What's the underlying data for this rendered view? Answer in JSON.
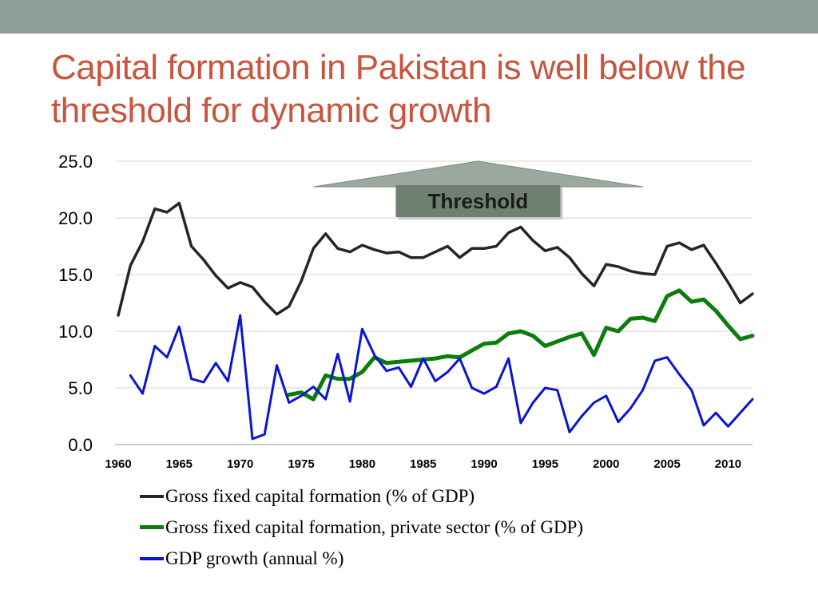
{
  "slide": {
    "title": "Capital formation in Pakistan is well below the threshold for dynamic growth",
    "accent_color": "#c8553d",
    "bar_color": "#8f9e96"
  },
  "annotation": {
    "label": "Threshold",
    "value": 25.0,
    "x_start": 1976,
    "x_end": 2003,
    "box_color": "#6f8070"
  },
  "chart_data": {
    "type": "line",
    "title": "",
    "xlabel": "",
    "ylabel": "",
    "xlim": [
      1960,
      2012
    ],
    "ylim": [
      0,
      25
    ],
    "yticks": [
      "25.0",
      "20.0",
      "15.0",
      "10.0",
      "5.0",
      "0.0"
    ],
    "xticks": [
      "1960",
      "1965",
      "1970",
      "1975",
      "1980",
      "1985",
      "1990",
      "1995",
      "2000",
      "2005",
      "2010"
    ],
    "grid": true,
    "legend_position": "bottom",
    "series": [
      {
        "name": "Gross fixed capital formation (% of GDP)",
        "color": "#22252e",
        "width": 3.5,
        "start_year": 1960,
        "values": [
          11.4,
          15.8,
          17.9,
          20.8,
          20.5,
          21.3,
          17.5,
          16.3,
          14.9,
          13.8,
          14.3,
          13.9,
          12.6,
          11.5,
          12.2,
          14.4,
          17.3,
          18.6,
          17.3,
          17.0,
          17.6,
          17.2,
          16.9,
          17.0,
          16.5,
          16.5,
          17.0,
          17.5,
          16.5,
          17.3,
          17.3,
          17.5,
          18.7,
          19.2,
          18.0,
          17.1,
          17.4,
          16.5,
          15.1,
          14.0,
          15.9,
          15.7,
          15.3,
          15.1,
          15.0,
          17.5,
          17.8,
          17.2,
          17.6,
          16.0,
          14.3,
          12.5,
          13.3
        ]
      },
      {
        "name": "Gross fixed capital formation, private sector (% of GDP)",
        "color": "#0a7d0a",
        "width": 5,
        "start_year": 1974,
        "values": [
          4.4,
          4.6,
          4.0,
          6.1,
          5.8,
          5.8,
          6.4,
          7.7,
          7.2,
          7.3,
          7.4,
          7.5,
          7.6,
          7.8,
          7.7,
          8.3,
          8.9,
          9.0,
          9.8,
          10.0,
          9.6,
          8.7,
          9.1,
          9.5,
          9.8,
          7.9,
          10.3,
          10.0,
          11.1,
          11.2,
          10.9,
          13.1,
          13.6,
          12.6,
          12.8,
          11.8,
          10.5,
          9.3,
          9.6
        ]
      },
      {
        "name": "GDP growth (annual %)",
        "color": "#0a14d2",
        "width": 3,
        "start_year": 1961,
        "values": [
          6.1,
          4.5,
          8.7,
          7.7,
          10.4,
          5.8,
          5.5,
          7.2,
          5.6,
          11.4,
          0.5,
          0.9,
          7.0,
          3.7,
          4.3,
          5.1,
          4.0,
          8.0,
          3.8,
          10.2,
          7.9,
          6.5,
          6.8,
          5.1,
          7.6,
          5.6,
          6.4,
          7.6,
          5.0,
          4.5,
          5.1,
          7.6,
          1.9,
          3.7,
          5.0,
          4.8,
          1.1,
          2.5,
          3.7,
          4.3,
          2.0,
          3.2,
          4.8,
          7.4,
          7.7,
          6.2,
          4.8,
          1.7,
          2.8,
          1.6,
          2.8,
          4.0
        ]
      }
    ]
  }
}
